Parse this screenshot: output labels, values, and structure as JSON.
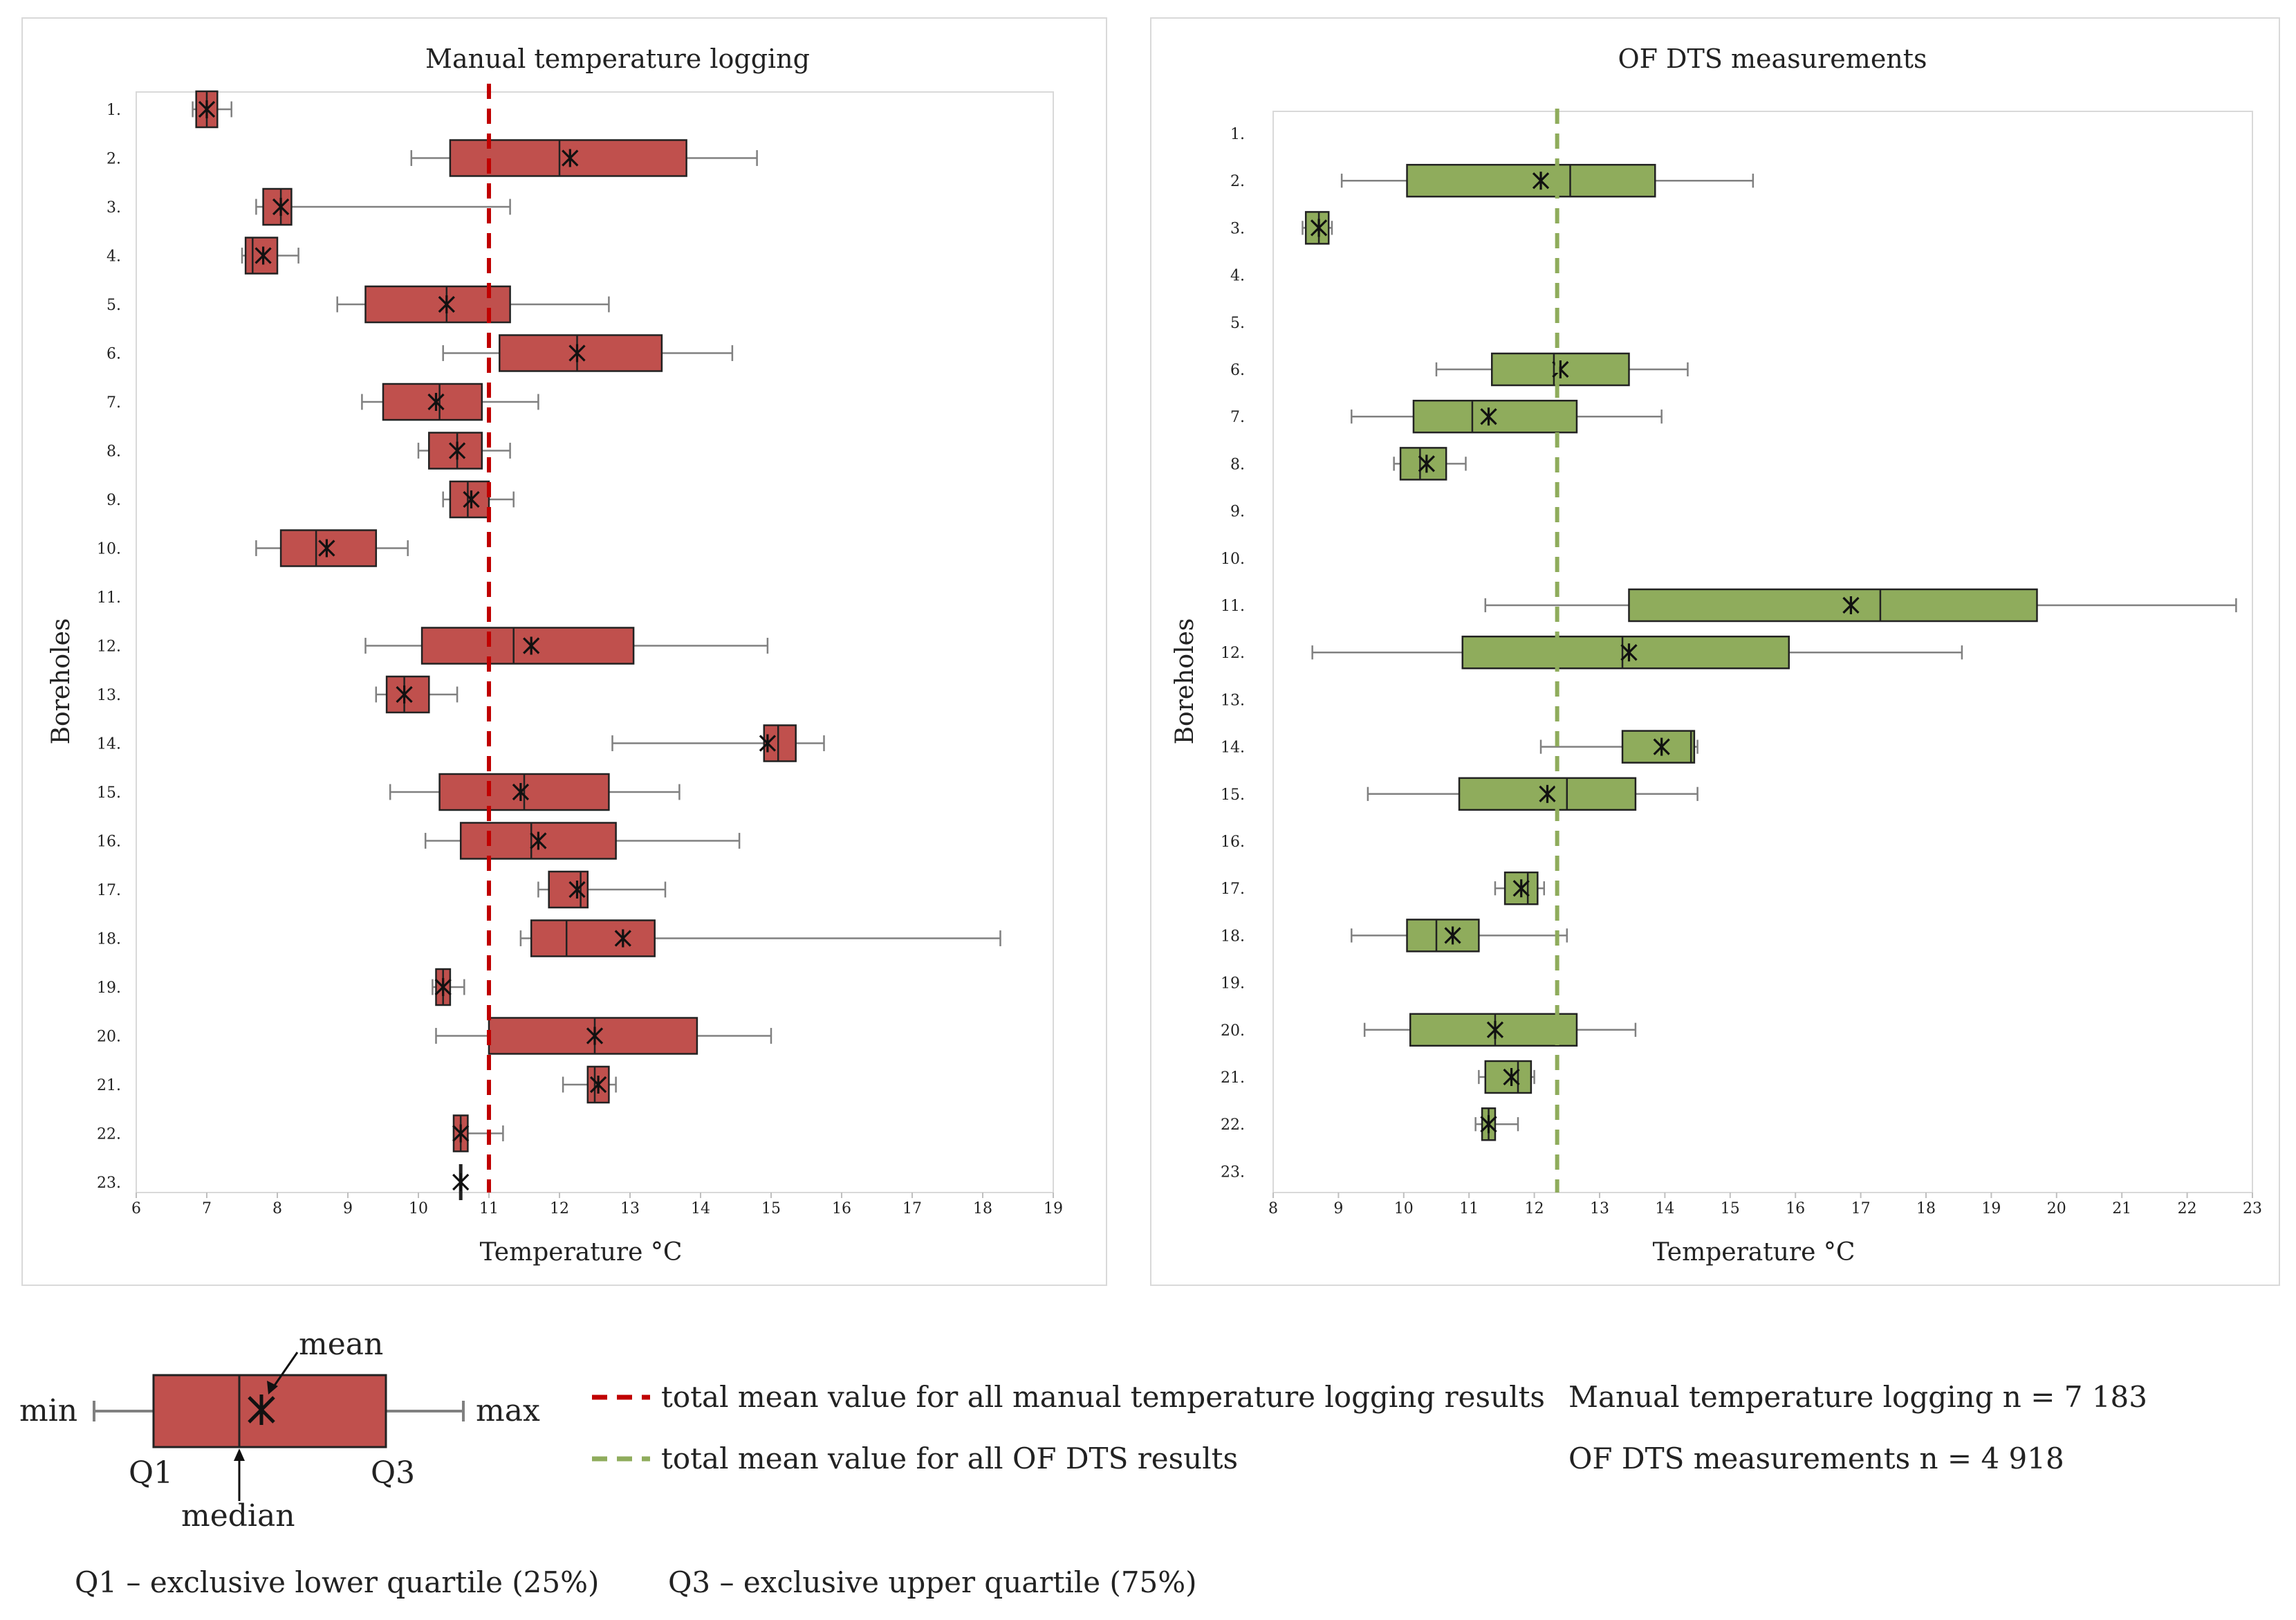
{
  "chart_data": [
    {
      "type": "boxplot",
      "title": "Manual temperature logging",
      "xlabel": "Temperature °C",
      "ylabel": "Boreholes",
      "xlim": [
        6,
        19
      ],
      "x_ticks": [
        "6",
        "7",
        "8",
        "9",
        "10",
        "11",
        "12",
        "13",
        "14",
        "15",
        "16",
        "17",
        "18",
        "19"
      ],
      "color": "#c0504d",
      "mean_line": {
        "value": 11.0,
        "color": "#c00000"
      },
      "categories": [
        "1.",
        "2.",
        "3.",
        "4.",
        "5.",
        "6.",
        "7.",
        "8.",
        "9.",
        "10.",
        "11.",
        "12.",
        "13.",
        "14.",
        "15.",
        "16.",
        "17.",
        "18.",
        "19.",
        "20.",
        "21.",
        "22.",
        "23."
      ],
      "series": [
        {
          "min": 6.8,
          "q1": 6.85,
          "median": 7.0,
          "q3": 7.15,
          "max": 7.35,
          "mean": 7.0
        },
        {
          "min": 9.9,
          "q1": 10.45,
          "median": 12.0,
          "q3": 13.8,
          "max": 14.8,
          "mean": 12.15
        },
        {
          "min": 7.7,
          "q1": 7.8,
          "median": 8.05,
          "q3": 8.2,
          "max": 11.3,
          "mean": 8.05
        },
        {
          "min": 7.5,
          "q1": 7.55,
          "median": 7.65,
          "q3": 8.0,
          "max": 8.3,
          "mean": 7.8
        },
        {
          "min": 8.85,
          "q1": 9.25,
          "median": 10.4,
          "q3": 11.3,
          "max": 12.7,
          "mean": 10.4
        },
        {
          "min": 10.35,
          "q1": 11.15,
          "median": 12.25,
          "q3": 13.45,
          "max": 14.45,
          "mean": 12.25
        },
        {
          "min": 9.2,
          "q1": 9.5,
          "median": 10.3,
          "q3": 10.9,
          "max": 11.7,
          "mean": 10.25
        },
        {
          "min": 10.0,
          "q1": 10.15,
          "median": 10.55,
          "q3": 10.9,
          "max": 11.3,
          "mean": 10.55
        },
        {
          "min": 10.35,
          "q1": 10.45,
          "median": 10.7,
          "q3": 11.0,
          "max": 11.35,
          "mean": 10.75
        },
        {
          "min": 7.7,
          "q1": 8.05,
          "median": 8.55,
          "q3": 9.4,
          "max": 9.85,
          "mean": 8.7
        },
        null,
        {
          "min": 9.25,
          "q1": 10.05,
          "median": 11.35,
          "q3": 13.05,
          "max": 14.95,
          "mean": 11.6
        },
        {
          "min": 9.4,
          "q1": 9.55,
          "median": 9.8,
          "q3": 10.15,
          "max": 10.55,
          "mean": 9.8
        },
        {
          "min": 12.75,
          "q1": 14.9,
          "median": 15.1,
          "q3": 15.35,
          "max": 15.75,
          "mean": 14.95
        },
        {
          "min": 9.6,
          "q1": 10.3,
          "median": 11.5,
          "q3": 12.7,
          "max": 13.7,
          "mean": 11.45
        },
        {
          "min": 10.1,
          "q1": 10.6,
          "median": 11.6,
          "q3": 12.8,
          "max": 14.55,
          "mean": 11.7
        },
        {
          "min": 11.7,
          "q1": 11.85,
          "median": 12.3,
          "q3": 12.4,
          "max": 13.5,
          "mean": 12.25
        },
        {
          "min": 11.45,
          "q1": 11.6,
          "median": 12.1,
          "q3": 13.35,
          "max": 18.25,
          "mean": 12.9
        },
        {
          "min": 10.2,
          "q1": 10.25,
          "median": 10.35,
          "q3": 10.45,
          "max": 10.65,
          "mean": 10.35
        },
        {
          "min": 10.25,
          "q1": 11.0,
          "median": 12.5,
          "q3": 13.95,
          "max": 15.0,
          "mean": 12.5
        },
        {
          "min": 12.05,
          "q1": 12.4,
          "median": 12.5,
          "q3": 12.7,
          "max": 12.8,
          "mean": 12.55
        },
        {
          "min": 10.5,
          "q1": 10.5,
          "median": 10.6,
          "q3": 10.7,
          "max": 11.2,
          "mean": 10.6
        },
        {
          "min": 10.6,
          "q1": 10.6,
          "median": 10.6,
          "q3": 10.6,
          "max": 10.6,
          "mean": 10.6
        }
      ]
    },
    {
      "type": "boxplot",
      "title": "OF DTS measurements",
      "xlabel": "Temperature °C",
      "ylabel": "Boreholes",
      "xlim": [
        8,
        23
      ],
      "x_ticks": [
        "8",
        "9",
        "10",
        "11",
        "12",
        "13",
        "14",
        "15",
        "16",
        "17",
        "18",
        "19",
        "20",
        "21",
        "22",
        "23"
      ],
      "color": "#8fac5c",
      "mean_line": {
        "value": 12.35,
        "color": "#8fac5c"
      },
      "categories": [
        "1.",
        "2.",
        "3.",
        "4.",
        "5.",
        "6.",
        "7.",
        "8.",
        "9.",
        "10.",
        "11.",
        "12.",
        "13.",
        "14.",
        "15.",
        "16.",
        "17.",
        "18.",
        "19.",
        "20.",
        "21.",
        "22.",
        "23."
      ],
      "series": [
        null,
        {
          "min": 9.05,
          "q1": 10.05,
          "median": 12.55,
          "q3": 13.85,
          "max": 15.35,
          "mean": 12.1
        },
        {
          "min": 8.45,
          "q1": 8.5,
          "median": 8.7,
          "q3": 8.85,
          "max": 8.9,
          "mean": 8.7
        },
        null,
        null,
        {
          "min": 10.5,
          "q1": 11.35,
          "median": 12.3,
          "q3": 13.45,
          "max": 14.35,
          "mean": 12.4
        },
        {
          "min": 9.2,
          "q1": 10.15,
          "median": 11.05,
          "q3": 12.65,
          "max": 13.95,
          "mean": 11.3
        },
        {
          "min": 9.85,
          "q1": 9.95,
          "median": 10.25,
          "q3": 10.65,
          "max": 10.95,
          "mean": 10.35
        },
        null,
        null,
        {
          "min": 11.25,
          "q1": 13.45,
          "median": 17.3,
          "q3": 19.7,
          "max": 22.75,
          "mean": 16.85
        },
        {
          "min": 8.6,
          "q1": 10.9,
          "median": 13.35,
          "q3": 15.9,
          "max": 18.55,
          "mean": 13.45
        },
        null,
        {
          "min": 12.1,
          "q1": 13.35,
          "median": 14.4,
          "q3": 14.45,
          "max": 14.5,
          "mean": 13.95
        },
        {
          "min": 9.45,
          "q1": 10.85,
          "median": 12.5,
          "q3": 13.55,
          "max": 14.5,
          "mean": 12.2
        },
        null,
        {
          "min": 11.4,
          "q1": 11.55,
          "median": 11.9,
          "q3": 12.05,
          "max": 12.15,
          "mean": 11.8
        },
        {
          "min": 9.2,
          "q1": 10.05,
          "median": 10.5,
          "q3": 11.15,
          "max": 12.5,
          "mean": 10.75
        },
        null,
        {
          "min": 9.4,
          "q1": 10.1,
          "median": 11.4,
          "q3": 12.65,
          "max": 13.55,
          "mean": 11.4
        },
        {
          "min": 11.15,
          "q1": 11.25,
          "median": 11.75,
          "q3": 11.95,
          "max": 12.0,
          "mean": 11.65
        },
        {
          "min": 11.1,
          "q1": 11.2,
          "median": 11.3,
          "q3": 11.4,
          "max": 11.75,
          "mean": 11.3
        },
        null
      ]
    }
  ],
  "legend": {
    "box_min": "min",
    "box_max": "max",
    "box_mean": "mean",
    "box_median": "median",
    "box_q1": "Q1",
    "box_q3": "Q3",
    "manual_line": "total mean value for all manual temperature logging results",
    "dts_line": "total mean value for all OF DTS results",
    "manual_n": "Manual temperature logging n = 7 183",
    "dts_n": "OF DTS measurements n = 4 918",
    "q1_note": "Q1 – exclusive lower quartile (25%)",
    "q3_note": "Q3 – exclusive upper quartile (75%)"
  }
}
